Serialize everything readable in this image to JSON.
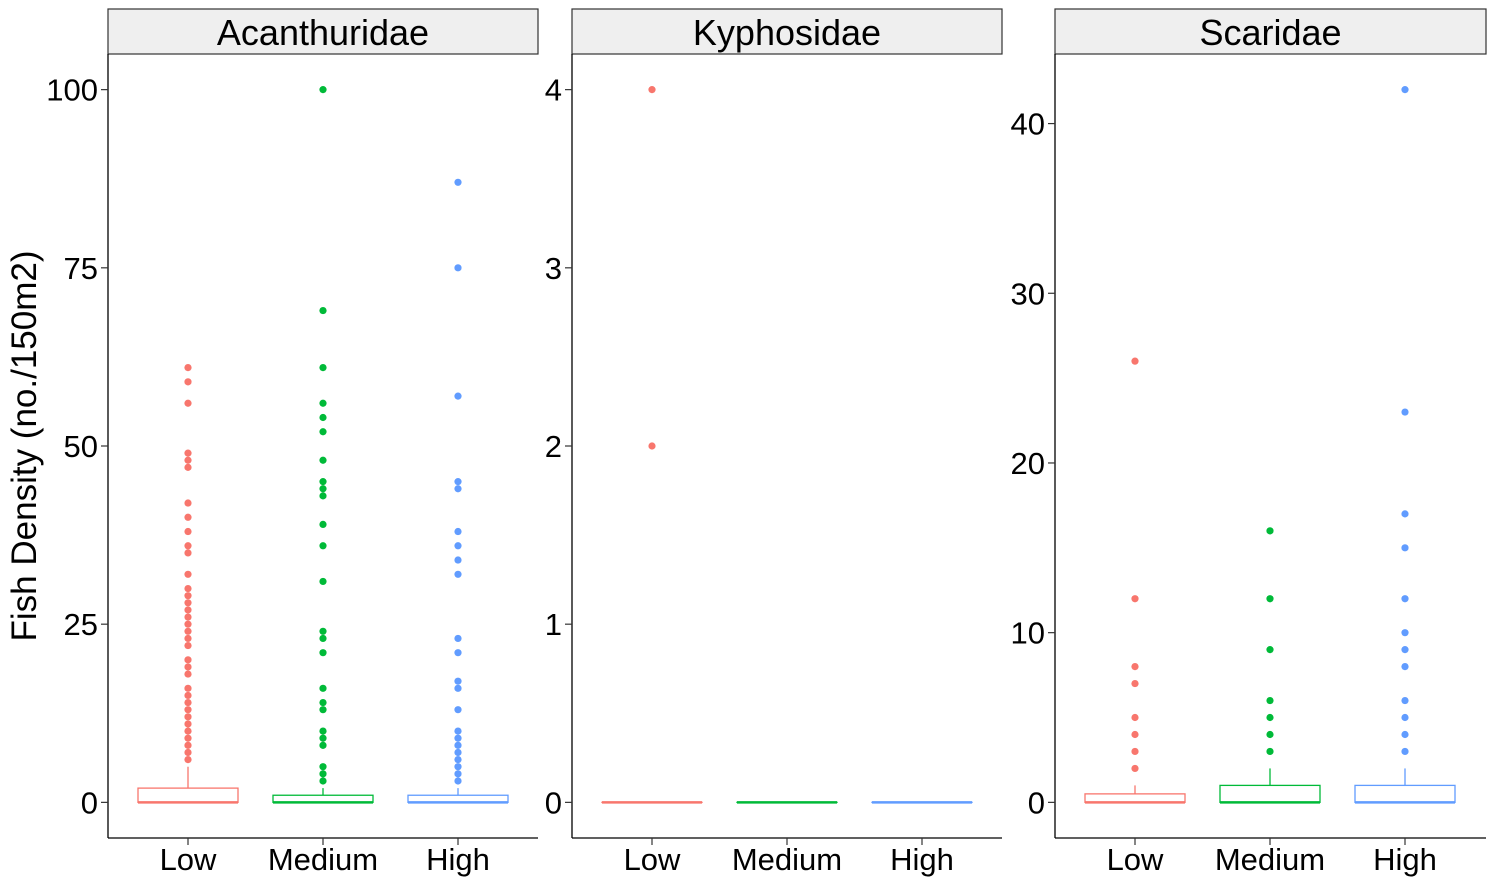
{
  "chart_data": {
    "type": "box",
    "ylabel": "Fish Density (no./150m2)",
    "categories": [
      "Low",
      "Medium",
      "High"
    ],
    "colors": {
      "Low": "#F8766D",
      "Medium": "#00BA38",
      "High": "#619CFF"
    },
    "panels": [
      {
        "title": "Acanthuridae",
        "ylim": [
          -5,
          105
        ],
        "yticks": [
          0,
          25,
          50,
          75,
          100
        ],
        "groups": [
          {
            "category": "Low",
            "q1": 0,
            "median": 0,
            "q3": 2,
            "whisker_low": 0,
            "whisker_high": 5,
            "outliers": [
              6,
              7,
              8,
              9,
              10,
              11,
              12,
              13,
              14,
              15,
              16,
              18,
              19,
              20,
              22,
              23,
              24,
              25,
              26,
              27,
              28,
              29,
              30,
              32,
              35,
              36,
              38,
              40,
              42,
              47,
              48,
              49,
              56,
              59,
              61
            ]
          },
          {
            "category": "Medium",
            "q1": 0,
            "median": 0,
            "q3": 1,
            "whisker_low": 0,
            "whisker_high": 2,
            "outliers": [
              3,
              4,
              5,
              8,
              9,
              10,
              13,
              14,
              16,
              21,
              23,
              24,
              31,
              36,
              39,
              43,
              44,
              45,
              48,
              52,
              54,
              56,
              61,
              69,
              100
            ]
          },
          {
            "category": "High",
            "q1": 0,
            "median": 0,
            "q3": 1,
            "whisker_low": 0,
            "whisker_high": 2,
            "outliers": [
              3,
              4,
              5,
              6,
              7,
              8,
              9,
              10,
              13,
              16,
              17,
              21,
              23,
              32,
              34,
              36,
              38,
              44,
              45,
              57,
              75,
              87
            ]
          }
        ]
      },
      {
        "title": "Kyphosidae",
        "ylim": [
          -0.2,
          4.2
        ],
        "yticks": [
          0,
          1,
          2,
          3,
          4
        ],
        "groups": [
          {
            "category": "Low",
            "q1": 0,
            "median": 0,
            "q3": 0,
            "whisker_low": 0,
            "whisker_high": 0,
            "outliers": [
              2,
              4
            ]
          },
          {
            "category": "Medium",
            "q1": 0,
            "median": 0,
            "q3": 0,
            "whisker_low": 0,
            "whisker_high": 0,
            "outliers": []
          },
          {
            "category": "High",
            "q1": 0,
            "median": 0,
            "q3": 0,
            "whisker_low": 0,
            "whisker_high": 0,
            "outliers": []
          }
        ]
      },
      {
        "title": "Scaridae",
        "ylim": [
          -2.1,
          44.1
        ],
        "yticks": [
          0,
          10,
          20,
          30,
          40
        ],
        "groups": [
          {
            "category": "Low",
            "q1": 0,
            "median": 0,
            "q3": 0.5,
            "whisker_low": 0,
            "whisker_high": 1,
            "outliers": [
              2,
              3,
              4,
              5,
              7,
              8,
              12,
              26
            ]
          },
          {
            "category": "Medium",
            "q1": 0,
            "median": 0,
            "q3": 1,
            "whisker_low": 0,
            "whisker_high": 2,
            "outliers": [
              3,
              4,
              5,
              6,
              9,
              12,
              16
            ]
          },
          {
            "category": "High",
            "q1": 0,
            "median": 0,
            "q3": 1,
            "whisker_low": 0,
            "whisker_high": 2,
            "outliers": [
              3,
              4,
              5,
              6,
              8,
              9,
              10,
              12,
              15,
              17,
              23,
              42
            ]
          }
        ]
      }
    ]
  }
}
